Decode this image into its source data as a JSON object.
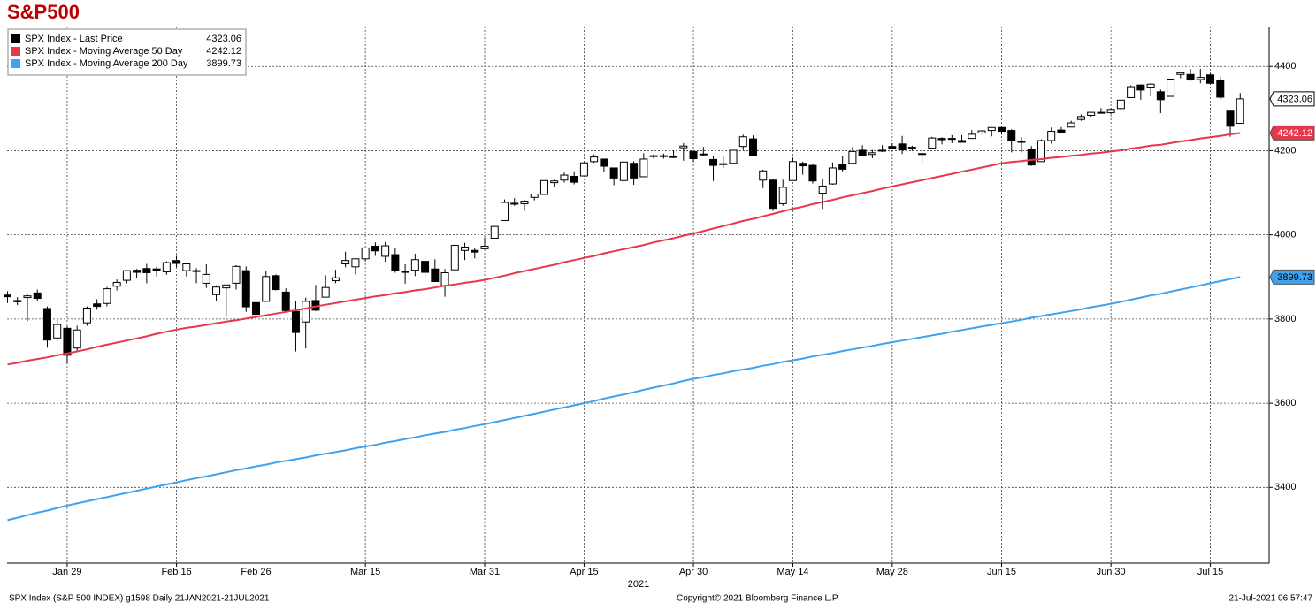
{
  "chart_data": {
    "type": "candlestick",
    "title": "S&P500",
    "x_label": "2021",
    "footer_left": "SPX Index (S&P 500 INDEX) g1598  Daily 21JAN2021-21JUL2021",
    "footer_center": "Copyright© 2021 Bloomberg Finance L.P.",
    "footer_right": "21-Jul-2021 06:57:47",
    "categories": [
      "2021-01-21",
      "2021-01-22",
      "2021-01-25",
      "2021-01-26",
      "2021-01-27",
      "2021-01-28",
      "2021-01-29",
      "2021-02-01",
      "2021-02-02",
      "2021-02-03",
      "2021-02-04",
      "2021-02-05",
      "2021-02-08",
      "2021-02-09",
      "2021-02-10",
      "2021-02-11",
      "2021-02-12",
      "2021-02-16",
      "2021-02-17",
      "2021-02-18",
      "2021-02-19",
      "2021-02-22",
      "2021-02-23",
      "2021-02-24",
      "2021-02-25",
      "2021-02-26",
      "2021-03-01",
      "2021-03-02",
      "2021-03-03",
      "2021-03-04",
      "2021-03-05",
      "2021-03-08",
      "2021-03-09",
      "2021-03-10",
      "2021-03-11",
      "2021-03-12",
      "2021-03-15",
      "2021-03-16",
      "2021-03-17",
      "2021-03-18",
      "2021-03-19",
      "2021-03-22",
      "2021-03-23",
      "2021-03-24",
      "2021-03-25",
      "2021-03-26",
      "2021-03-29",
      "2021-03-30",
      "2021-03-31",
      "2021-04-01",
      "2021-04-05",
      "2021-04-06",
      "2021-04-07",
      "2021-04-08",
      "2021-04-09",
      "2021-04-12",
      "2021-04-13",
      "2021-04-14",
      "2021-04-15",
      "2021-04-16",
      "2021-04-19",
      "2021-04-20",
      "2021-04-21",
      "2021-04-22",
      "2021-04-23",
      "2021-04-26",
      "2021-04-27",
      "2021-04-28",
      "2021-04-29",
      "2021-04-30",
      "2021-05-03",
      "2021-05-04",
      "2021-05-05",
      "2021-05-06",
      "2021-05-07",
      "2021-05-10",
      "2021-05-11",
      "2021-05-12",
      "2021-05-13",
      "2021-05-14",
      "2021-05-17",
      "2021-05-18",
      "2021-05-19",
      "2021-05-20",
      "2021-05-21",
      "2021-05-24",
      "2021-05-25",
      "2021-05-26",
      "2021-05-27",
      "2021-05-28",
      "2021-06-01",
      "2021-06-02",
      "2021-06-03",
      "2021-06-04",
      "2021-06-07",
      "2021-06-08",
      "2021-06-09",
      "2021-06-10",
      "2021-06-11",
      "2021-06-14",
      "2021-06-15",
      "2021-06-16",
      "2021-06-17",
      "2021-06-18",
      "2021-06-21",
      "2021-06-22",
      "2021-06-23",
      "2021-06-24",
      "2021-06-25",
      "2021-06-28",
      "2021-06-29",
      "2021-06-30",
      "2021-07-01",
      "2021-07-02",
      "2021-07-06",
      "2021-07-07",
      "2021-07-08",
      "2021-07-09",
      "2021-07-12",
      "2021-07-13",
      "2021-07-14",
      "2021-07-15",
      "2021-07-16",
      "2021-07-19",
      "2021-07-20"
    ],
    "candles": {
      "name": "SPX Index - Last Price",
      "color": "#000000",
      "up_color": "#ffffff",
      "open": [
        3857,
        3844,
        3851,
        3862,
        3825,
        3755,
        3778,
        3731,
        3791,
        3836,
        3837,
        3878,
        3892,
        3916,
        3920,
        3919,
        3912,
        3939,
        3915,
        3915,
        3885,
        3858,
        3874,
        3885,
        3915,
        3839,
        3842,
        3903,
        3864,
        3818,
        3793,
        3844,
        3852,
        3891,
        3931,
        3924,
        3943,
        3973,
        3949,
        3953,
        3913,
        3916,
        3937,
        3919,
        3879,
        3917,
        3963,
        3963,
        3967,
        3992,
        4034,
        4075,
        4074,
        4089,
        4096,
        4124,
        4130,
        4139,
        4140,
        4174,
        4180,
        4159,
        4129,
        4170,
        4138,
        4186,
        4188,
        4186,
        4207,
        4198,
        4192,
        4179,
        4169,
        4170,
        4210,
        4228,
        4130,
        4130,
        4074,
        4129,
        4170,
        4165,
        4099,
        4121,
        4168,
        4170,
        4201,
        4191,
        4201,
        4210,
        4216,
        4206,
        4191,
        4206,
        4229,
        4229,
        4224,
        4229,
        4242,
        4248,
        4255,
        4248,
        4220,
        4204,
        4174,
        4224,
        4249,
        4256,
        4274,
        4284,
        4290,
        4290,
        4300,
        4326,
        4356,
        4351,
        4340,
        4329,
        4381,
        4381,
        4369,
        4380,
        4367,
        4296,
        4265
      ],
      "high": [
        3866,
        3852,
        3860,
        3870,
        3830,
        3801,
        3784,
        3784,
        3830,
        3847,
        3876,
        3894,
        3916,
        3919,
        3931,
        3925,
        3937,
        3950,
        3933,
        3921,
        3930,
        3880,
        3882,
        3928,
        3925,
        3861,
        3914,
        3906,
        3873,
        3843,
        3851,
        3881,
        3904,
        3917,
        3960,
        3944,
        3970,
        3982,
        3983,
        3969,
        3930,
        3955,
        3949,
        3942,
        3919,
        3978,
        3981,
        3969,
        3994,
        4021,
        4084,
        4087,
        4083,
        4098,
        4129,
        4131,
        4148,
        4151,
        4173,
        4191,
        4180,
        4160,
        4175,
        4175,
        4194,
        4191,
        4193,
        4201,
        4218,
        4198,
        4209,
        4187,
        4186,
        4202,
        4238,
        4236,
        4155,
        4134,
        4131,
        4183,
        4174,
        4169,
        4134,
        4172,
        4188,
        4209,
        4213,
        4202,
        4213,
        4218,
        4235,
        4212,
        4197,
        4233,
        4232,
        4237,
        4237,
        4249,
        4249,
        4255,
        4257,
        4251,
        4232,
        4211,
        4227,
        4255,
        4256,
        4271,
        4286,
        4292,
        4301,
        4301,
        4321,
        4355,
        4357,
        4361,
        4345,
        4371,
        4386,
        4394,
        4394,
        4383,
        4376,
        4296,
        4337
      ],
      "low": [
        3838,
        3833,
        3795,
        3844,
        3732,
        3748,
        3694,
        3725,
        3784,
        3822,
        3830,
        3868,
        3885,
        3898,
        3885,
        3901,
        3905,
        3923,
        3901,
        3885,
        3874,
        3842,
        3805,
        3870,
        3817,
        3789,
        3842,
        3868,
        3818,
        3723,
        3730,
        3819,
        3852,
        3885,
        3923,
        3906,
        3938,
        3950,
        3936,
        3910,
        3884,
        3902,
        3901,
        3889,
        3853,
        3917,
        3940,
        3944,
        3966,
        3992,
        4034,
        4069,
        4057,
        4082,
        4095,
        4114,
        4124,
        4120,
        4139,
        4171,
        4150,
        4118,
        4126,
        4119,
        4138,
        4181,
        4181,
        4182,
        4176,
        4174,
        4188,
        4128,
        4158,
        4167,
        4201,
        4188,
        4111,
        4057,
        4069,
        4129,
        4143,
        4122,
        4062,
        4119,
        4151,
        4170,
        4187,
        4182,
        4197,
        4203,
        4192,
        4199,
        4168,
        4206,
        4215,
        4218,
        4219,
        4229,
        4240,
        4234,
        4238,
        4196,
        4196,
        4164,
        4174,
        4217,
        4241,
        4256,
        4271,
        4281,
        4288,
        4286,
        4297,
        4326,
        4321,
        4329,
        4289,
        4329,
        4372,
        4366,
        4360,
        4357,
        4322,
        4233,
        4265
      ],
      "close": [
        3853,
        3841,
        3855,
        3849,
        3750,
        3787,
        3714,
        3774,
        3826,
        3830,
        3872,
        3887,
        3915,
        3911,
        3910,
        3916,
        3934,
        3932,
        3931,
        3913,
        3906,
        3876,
        3881,
        3925,
        3829,
        3811,
        3901,
        3870,
        3820,
        3768,
        3842,
        3821,
        3875,
        3898,
        3939,
        3943,
        3969,
        3962,
        3974,
        3915,
        3913,
        3941,
        3911,
        3889,
        3910,
        3975,
        3971,
        3959,
        3973,
        4020,
        4077,
        4074,
        4080,
        4097,
        4129,
        4128,
        4142,
        4125,
        4171,
        4185,
        4163,
        4135,
        4173,
        4135,
        4180,
        4188,
        4187,
        4184,
        4211,
        4181,
        4192,
        4165,
        4168,
        4201,
        4233,
        4189,
        4152,
        4063,
        4113,
        4174,
        4164,
        4128,
        4116,
        4159,
        4156,
        4198,
        4188,
        4195,
        4201,
        4204,
        4202,
        4208,
        4193,
        4230,
        4226,
        4227,
        4220,
        4239,
        4247,
        4255,
        4246,
        4224,
        4222,
        4166,
        4224,
        4246,
        4242,
        4266,
        4281,
        4291,
        4291,
        4298,
        4320,
        4352,
        4344,
        4358,
        4321,
        4370,
        4385,
        4369,
        4374,
        4360,
        4327,
        4258,
        4323.06
      ]
    },
    "series": [
      {
        "name": "SPX Index - Moving Average 50 Day",
        "color": "#e8364c",
        "text_color": "#ffffff",
        "values": [
          3692,
          3696,
          3701,
          3705,
          3709,
          3714,
          3718,
          3723,
          3728,
          3734,
          3739,
          3744,
          3749,
          3754,
          3759,
          3765,
          3770,
          3775,
          3779,
          3782,
          3786,
          3790,
          3794,
          3797,
          3801,
          3805,
          3809,
          3813,
          3817,
          3821,
          3825,
          3830,
          3834,
          3838,
          3842,
          3846,
          3850,
          3854,
          3857,
          3861,
          3864,
          3868,
          3871,
          3875,
          3879,
          3882,
          3886,
          3889,
          3893,
          3898,
          3903,
          3909,
          3914,
          3919,
          3924,
          3929,
          3935,
          3940,
          3945,
          3950,
          3956,
          3961,
          3966,
          3971,
          3976,
          3982,
          3987,
          3992,
          3998,
          4003,
          4009,
          4015,
          4021,
          4027,
          4033,
          4038,
          4044,
          4050,
          4056,
          4062,
          4067,
          4073,
          4078,
          4083,
          4089,
          4094,
          4099,
          4104,
          4110,
          4115,
          4120,
          4125,
          4130,
          4135,
          4140,
          4145,
          4150,
          4155,
          4160,
          4165,
          4170,
          4173,
          4175,
          4178,
          4180,
          4183,
          4185,
          4188,
          4190,
          4193,
          4195,
          4198,
          4201,
          4205,
          4208,
          4212,
          4214,
          4218,
          4222,
          4225,
          4229,
          4232,
          4235,
          4239,
          4242.12
        ]
      },
      {
        "name": "SPX Index - Moving Average 200 Day",
        "color": "#3ea2ee",
        "text_color": "#000000",
        "values": [
          3322,
          3328,
          3334,
          3340,
          3345,
          3351,
          3357,
          3362,
          3367,
          3372,
          3377,
          3382,
          3387,
          3392,
          3397,
          3402,
          3407,
          3412,
          3417,
          3422,
          3426,
          3431,
          3436,
          3441,
          3445,
          3450,
          3454,
          3459,
          3463,
          3467,
          3471,
          3476,
          3480,
          3484,
          3488,
          3493,
          3497,
          3501,
          3506,
          3510,
          3515,
          3519,
          3524,
          3528,
          3532,
          3537,
          3541,
          3546,
          3550,
          3555,
          3560,
          3565,
          3570,
          3575,
          3580,
          3585,
          3590,
          3595,
          3600,
          3605,
          3611,
          3616,
          3621,
          3626,
          3632,
          3637,
          3642,
          3647,
          3653,
          3658,
          3662,
          3667,
          3671,
          3676,
          3680,
          3684,
          3689,
          3693,
          3698,
          3702,
          3706,
          3711,
          3715,
          3719,
          3724,
          3728,
          3732,
          3736,
          3741,
          3745,
          3749,
          3753,
          3757,
          3761,
          3765,
          3770,
          3774,
          3778,
          3782,
          3786,
          3790,
          3794,
          3798,
          3803,
          3807,
          3811,
          3815,
          3819,
          3823,
          3828,
          3832,
          3836,
          3841,
          3846,
          3851,
          3856,
          3860,
          3865,
          3870,
          3875,
          3880,
          3885,
          3890,
          3895,
          3899.73
        ]
      }
    ],
    "ylim": [
      3220,
      4495
    ],
    "yticks": [
      3400,
      3600,
      3800,
      4000,
      4200,
      4400
    ],
    "xticks": [
      {
        "value": "2021-01-29",
        "label": "Jan 29"
      },
      {
        "value": "2021-02-16",
        "label": "Feb 16"
      },
      {
        "value": "2021-02-26",
        "label": "Feb 26"
      },
      {
        "value": "2021-03-15",
        "label": "Mar 15"
      },
      {
        "value": "2021-03-31",
        "label": "Mar 31"
      },
      {
        "value": "2021-04-15",
        "label": "Apr 15"
      },
      {
        "value": "2021-04-30",
        "label": "Apr 30"
      },
      {
        "value": "2021-05-14",
        "label": "May 14"
      },
      {
        "value": "2021-05-28",
        "label": "May 28"
      },
      {
        "value": "2021-06-15",
        "label": "Jun 15"
      },
      {
        "value": "2021-06-30",
        "label": "Jun 30"
      },
      {
        "value": "2021-07-15",
        "label": "Jul 15"
      }
    ],
    "grid": true,
    "legend": "top-left"
  }
}
